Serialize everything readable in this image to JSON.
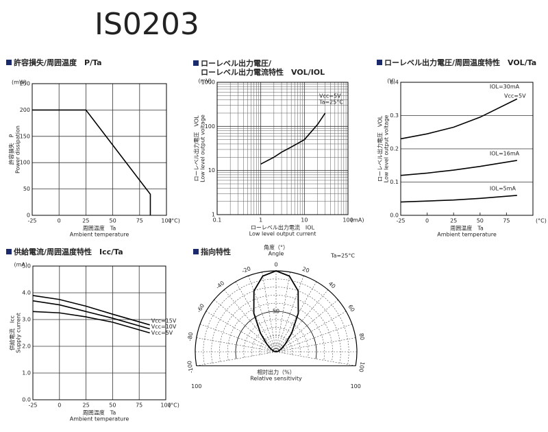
{
  "title": "IS0203",
  "chart_data": [
    {
      "type": "line",
      "title": [
        "許容損失/周囲温度　P/Ta"
      ],
      "xlabel": [
        "周囲温度　Ta",
        "Ambient temperature"
      ],
      "ylabel": [
        "許容損失　P",
        "Power dissipation"
      ],
      "xunit": "(°C)",
      "yunit": "(mW)",
      "grid": "both",
      "xlim": [
        -25,
        100
      ],
      "xticks": [
        -25,
        0,
        25,
        50,
        75,
        100
      ],
      "ylim": [
        0,
        250
      ],
      "yticks": [
        0,
        50,
        100,
        150,
        200,
        250
      ],
      "series": [
        {
          "color": "#000000",
          "x": [
            -25,
            25,
            85,
            85
          ],
          "values": [
            200,
            200,
            40,
            0
          ]
        }
      ]
    },
    {
      "type": "line",
      "title": [
        "ローレベル出力電圧/",
        "ローレベル出力電流特性　VOL/IOL"
      ],
      "xlabel": [
        "ローレベル出力電流　IOL",
        "Low level output current"
      ],
      "ylabel": [
        "ローレベル出力電圧　VOL",
        "Low level output voltage"
      ],
      "xunit": "(mA)",
      "yunit": "(mV)",
      "grid": "both",
      "minor_grid": true,
      "xscale": "log",
      "yscale": "log",
      "xlim": [
        0.1,
        100
      ],
      "xticks": [
        0.1,
        1,
        10,
        100
      ],
      "ylim": [
        1,
        1000
      ],
      "yticks": [
        1,
        10,
        100,
        1000
      ],
      "annotations": [
        "Vcc=5V",
        "Ta=25°C"
      ],
      "series": [
        {
          "color": "#000000",
          "x": [
            1,
            2,
            3,
            5,
            10,
            20,
            30
          ],
          "values": [
            14,
            20,
            26,
            34,
            50,
            110,
            200
          ]
        }
      ]
    },
    {
      "type": "line",
      "title": [
        "ローレベル出力電圧/周囲温度特性　VOL/Ta"
      ],
      "xlabel": [
        "周囲温度　Ta",
        "Ambient temperature"
      ],
      "ylabel": [
        "ローレベル出力電圧　VOL",
        "Low level output voltage"
      ],
      "xunit": "(°C)",
      "yunit": "(V)",
      "grid": "y",
      "xlim": [
        -25,
        100
      ],
      "xticks": [
        -25,
        0,
        25,
        50,
        75
      ],
      "ylim": [
        0,
        0.4
      ],
      "yticks": [
        {
          "value": 0,
          "label": "0.0"
        },
        0.1,
        0.2,
        0.3,
        0.4
      ],
      "annotations": [
        "Vcc=5V"
      ],
      "series": [
        {
          "name": "IOL=30mA",
          "color": "#000000",
          "x": [
            -25,
            0,
            25,
            50,
            85
          ],
          "values": [
            0.23,
            0.245,
            0.265,
            0.295,
            0.35
          ]
        },
        {
          "name": "IOL=16mA",
          "color": "#000000",
          "x": [
            -25,
            0,
            25,
            50,
            85
          ],
          "values": [
            0.12,
            0.127,
            0.136,
            0.147,
            0.165
          ]
        },
        {
          "name": "IOL=5mA",
          "color": "#000000",
          "x": [
            -25,
            0,
            25,
            50,
            85
          ],
          "values": [
            0.04,
            0.043,
            0.046,
            0.051,
            0.06
          ]
        }
      ]
    },
    {
      "type": "line",
      "title": [
        "供給電流/周囲温度特性　Icc/Ta"
      ],
      "xlabel": [
        "周囲温度　Ta",
        "Ambient temperature"
      ],
      "ylabel": [
        "供給電流　Icc",
        "Supply current"
      ],
      "xunit": "(°C)",
      "yunit": "(mA)",
      "grid": "both",
      "xlim": [
        -25,
        100
      ],
      "xticks": [
        -25,
        0,
        25,
        50,
        75,
        100
      ],
      "ylim": [
        0,
        5
      ],
      "yticks": [
        {
          "value": 0,
          "label": "0.0"
        },
        {
          "value": 1,
          "label": "1.0"
        },
        {
          "value": 2,
          "label": "2.0"
        },
        {
          "value": 3,
          "label": "3.0"
        },
        {
          "value": 4,
          "label": "4.0"
        },
        {
          "value": 5,
          "label": "5.0"
        }
      ],
      "series": [
        {
          "name": "Vcc=15V",
          "color": "#000000",
          "x": [
            -25,
            0,
            25,
            50,
            85
          ],
          "values": [
            3.9,
            3.75,
            3.5,
            3.2,
            2.8
          ]
        },
        {
          "name": "Vcc=10V",
          "color": "#000000",
          "x": [
            -25,
            0,
            25,
            50,
            85
          ],
          "values": [
            3.7,
            3.55,
            3.3,
            3.05,
            2.65
          ]
        },
        {
          "name": "Vcc=5V",
          "color": "#000000",
          "x": [
            -25,
            0,
            25,
            50,
            85
          ],
          "values": [
            3.3,
            3.25,
            3.1,
            2.9,
            2.5
          ]
        }
      ]
    },
    {
      "type": "polar",
      "title": [
        "指向特性"
      ],
      "angle_label": [
        "角度（°）",
        "Angle"
      ],
      "rlabel": [
        "相対出力（%）",
        "Relative sensitivity"
      ],
      "annotations": [
        "Ta=25°C"
      ],
      "angle_ticks": [
        -100,
        -80,
        -60,
        -40,
        -20,
        0,
        20,
        40,
        60,
        80,
        100
      ],
      "rlim": [
        0,
        100
      ],
      "rticks": [
        50,
        100
      ],
      "color": "#000000",
      "angles": [
        -90,
        -80,
        -70,
        -60,
        -50,
        -40,
        -30,
        -20,
        -10,
        0,
        10,
        20,
        30,
        40,
        50,
        60,
        70,
        80,
        90
      ],
      "values": [
        0,
        2,
        4,
        8,
        15,
        30,
        55,
        80,
        95,
        100,
        95,
        80,
        55,
        30,
        15,
        8,
        4,
        2,
        0
      ]
    }
  ]
}
